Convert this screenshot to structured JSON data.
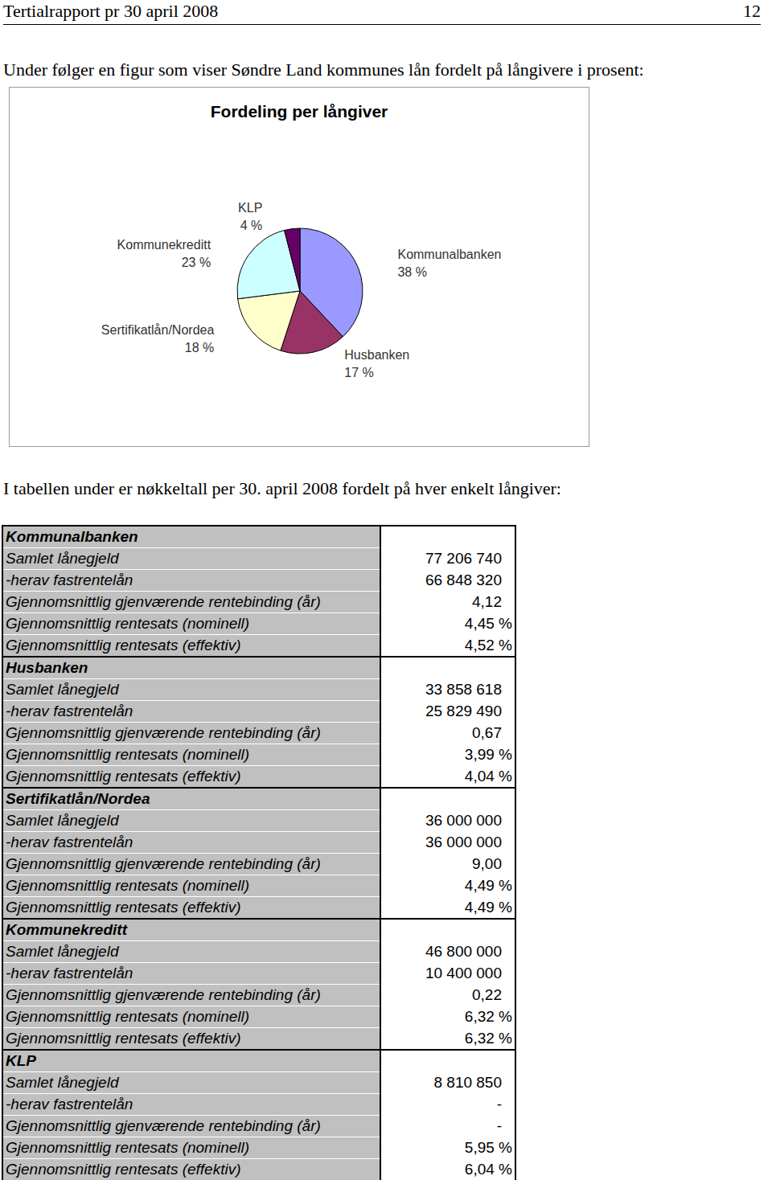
{
  "header": {
    "title": "Tertialrapport pr 30 april 2008",
    "page": "12"
  },
  "intro": "Under følger en figur som viser Søndre Land kommunes lån fordelt på långivere i prosent:",
  "chart_data": {
    "type": "pie",
    "title": "Fordeling per långiver",
    "categories": [
      "Kommunalbanken",
      "Husbanken",
      "Sertifikatlån/Nordea",
      "Kommunekreditt",
      "KLP"
    ],
    "values": [
      38,
      17,
      18,
      23,
      4
    ],
    "value_labels": [
      "38 %",
      "17 %",
      "18 %",
      "23 %",
      "4 %"
    ],
    "colors": [
      "#9999ff",
      "#993366",
      "#ffffcc",
      "#ccffff",
      "#660066"
    ],
    "data_labels": true
  },
  "table_intro": "I tabellen under er nøkkeltall per 30. april 2008 fordelt på hver enkelt långiver:",
  "table": {
    "sections": [
      {
        "name": "Kommunalbanken",
        "rows": [
          [
            "Samlet lånegjeld",
            "77 206 740"
          ],
          [
            "-herav fastrentelån",
            "66 848 320"
          ],
          [
            "Gjennomsnittlig gjenværende rentebinding (år)",
            "4,12"
          ],
          [
            "Gjennomsnittlig rentesats (nominell)",
            "4,45 %"
          ],
          [
            "Gjennomsnittlig rentesats (effektiv)",
            "4,52 %"
          ]
        ]
      },
      {
        "name": "Husbanken",
        "rows": [
          [
            "Samlet lånegjeld",
            "33 858 618"
          ],
          [
            "-herav fastrentelån",
            "25 829 490"
          ],
          [
            "Gjennomsnittlig gjenværende rentebinding (år)",
            "0,67"
          ],
          [
            "Gjennomsnittlig rentesats (nominell)",
            "3,99 %"
          ],
          [
            "Gjennomsnittlig rentesats (effektiv)",
            "4,04 %"
          ]
        ]
      },
      {
        "name": "Sertifikatlån/Nordea",
        "rows": [
          [
            "Samlet lånegjeld",
            "36 000 000"
          ],
          [
            "-herav fastrentelån",
            "36 000 000"
          ],
          [
            "Gjennomsnittlig gjenværende rentebinding (år)",
            "9,00"
          ],
          [
            "Gjennomsnittlig rentesats (nominell)",
            "4,49 %"
          ],
          [
            "Gjennomsnittlig rentesats (effektiv)",
            "4,49 %"
          ]
        ]
      },
      {
        "name": "Kommunekreditt",
        "rows": [
          [
            "Samlet lånegjeld",
            "46 800 000"
          ],
          [
            "-herav fastrentelån",
            "10 400 000"
          ],
          [
            "Gjennomsnittlig gjenværende rentebinding (år)",
            "0,22"
          ],
          [
            "Gjennomsnittlig rentesats (nominell)",
            "6,32 %"
          ],
          [
            "Gjennomsnittlig rentesats (effektiv)",
            "6,32 %"
          ]
        ]
      },
      {
        "name": "KLP",
        "rows": [
          [
            "Samlet lånegjeld",
            "8 810 850"
          ],
          [
            "-herav fastrentelån",
            "-"
          ],
          [
            "Gjennomsnittlig gjenværende rentebinding (år)",
            "-"
          ],
          [
            "Gjennomsnittlig rentesats (nominell)",
            "5,95 %"
          ],
          [
            "Gjennomsnittlig rentesats (effektiv)",
            "6,04 %"
          ]
        ]
      }
    ]
  }
}
